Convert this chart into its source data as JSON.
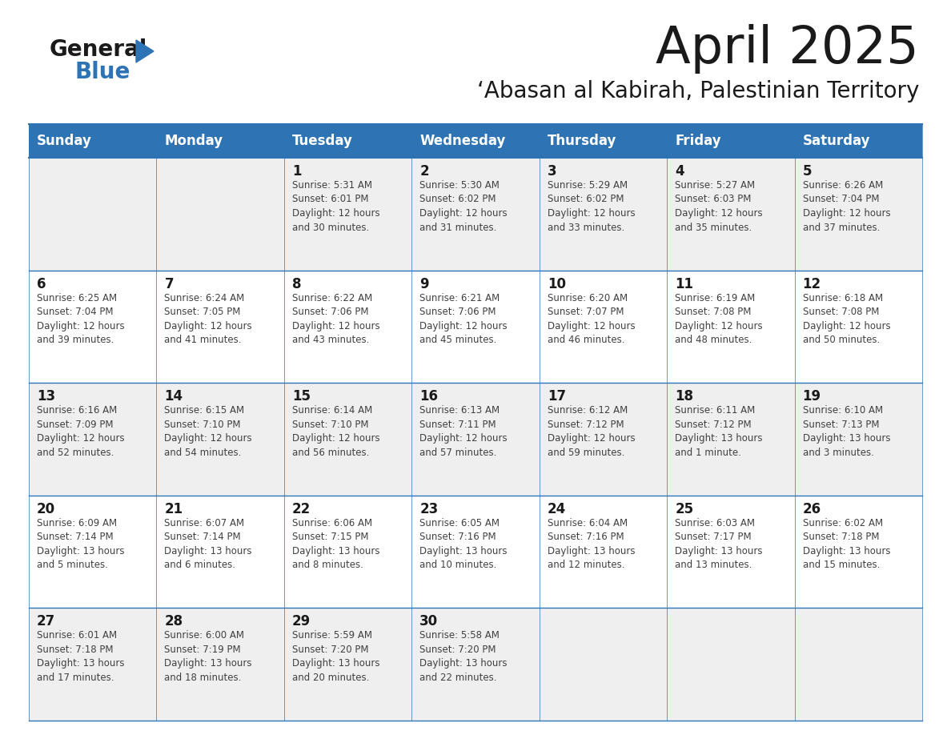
{
  "title": "April 2025",
  "subtitle": "‘Abasan al Kabirah, Palestinian Territory",
  "days_of_week": [
    "Sunday",
    "Monday",
    "Tuesday",
    "Wednesday",
    "Thursday",
    "Friday",
    "Saturday"
  ],
  "header_bg": "#2E74B5",
  "header_text": "#FFFFFF",
  "row_bg_even": "#EFEFEF",
  "row_bg_odd": "#FFFFFF",
  "cell_border": "#2E74B5",
  "title_color": "#1a1a1a",
  "subtitle_color": "#1a1a1a",
  "text_color": "#404040",
  "day_num_color": "#1a1a1a",
  "logo_general_color": "#1a1a1a",
  "logo_blue_color": "#2E74B5",
  "logo_triangle_color": "#2E74B5",
  "calendar": [
    [
      {
        "day": "",
        "info": ""
      },
      {
        "day": "",
        "info": ""
      },
      {
        "day": "1",
        "info": "Sunrise: 5:31 AM\nSunset: 6:01 PM\nDaylight: 12 hours\nand 30 minutes."
      },
      {
        "day": "2",
        "info": "Sunrise: 5:30 AM\nSunset: 6:02 PM\nDaylight: 12 hours\nand 31 minutes."
      },
      {
        "day": "3",
        "info": "Sunrise: 5:29 AM\nSunset: 6:02 PM\nDaylight: 12 hours\nand 33 minutes."
      },
      {
        "day": "4",
        "info": "Sunrise: 5:27 AM\nSunset: 6:03 PM\nDaylight: 12 hours\nand 35 minutes."
      },
      {
        "day": "5",
        "info": "Sunrise: 6:26 AM\nSunset: 7:04 PM\nDaylight: 12 hours\nand 37 minutes."
      }
    ],
    [
      {
        "day": "6",
        "info": "Sunrise: 6:25 AM\nSunset: 7:04 PM\nDaylight: 12 hours\nand 39 minutes."
      },
      {
        "day": "7",
        "info": "Sunrise: 6:24 AM\nSunset: 7:05 PM\nDaylight: 12 hours\nand 41 minutes."
      },
      {
        "day": "8",
        "info": "Sunrise: 6:22 AM\nSunset: 7:06 PM\nDaylight: 12 hours\nand 43 minutes."
      },
      {
        "day": "9",
        "info": "Sunrise: 6:21 AM\nSunset: 7:06 PM\nDaylight: 12 hours\nand 45 minutes."
      },
      {
        "day": "10",
        "info": "Sunrise: 6:20 AM\nSunset: 7:07 PM\nDaylight: 12 hours\nand 46 minutes."
      },
      {
        "day": "11",
        "info": "Sunrise: 6:19 AM\nSunset: 7:08 PM\nDaylight: 12 hours\nand 48 minutes."
      },
      {
        "day": "12",
        "info": "Sunrise: 6:18 AM\nSunset: 7:08 PM\nDaylight: 12 hours\nand 50 minutes."
      }
    ],
    [
      {
        "day": "13",
        "info": "Sunrise: 6:16 AM\nSunset: 7:09 PM\nDaylight: 12 hours\nand 52 minutes."
      },
      {
        "day": "14",
        "info": "Sunrise: 6:15 AM\nSunset: 7:10 PM\nDaylight: 12 hours\nand 54 minutes."
      },
      {
        "day": "15",
        "info": "Sunrise: 6:14 AM\nSunset: 7:10 PM\nDaylight: 12 hours\nand 56 minutes."
      },
      {
        "day": "16",
        "info": "Sunrise: 6:13 AM\nSunset: 7:11 PM\nDaylight: 12 hours\nand 57 minutes."
      },
      {
        "day": "17",
        "info": "Sunrise: 6:12 AM\nSunset: 7:12 PM\nDaylight: 12 hours\nand 59 minutes."
      },
      {
        "day": "18",
        "info": "Sunrise: 6:11 AM\nSunset: 7:12 PM\nDaylight: 13 hours\nand 1 minute."
      },
      {
        "day": "19",
        "info": "Sunrise: 6:10 AM\nSunset: 7:13 PM\nDaylight: 13 hours\nand 3 minutes."
      }
    ],
    [
      {
        "day": "20",
        "info": "Sunrise: 6:09 AM\nSunset: 7:14 PM\nDaylight: 13 hours\nand 5 minutes."
      },
      {
        "day": "21",
        "info": "Sunrise: 6:07 AM\nSunset: 7:14 PM\nDaylight: 13 hours\nand 6 minutes."
      },
      {
        "day": "22",
        "info": "Sunrise: 6:06 AM\nSunset: 7:15 PM\nDaylight: 13 hours\nand 8 minutes."
      },
      {
        "day": "23",
        "info": "Sunrise: 6:05 AM\nSunset: 7:16 PM\nDaylight: 13 hours\nand 10 minutes."
      },
      {
        "day": "24",
        "info": "Sunrise: 6:04 AM\nSunset: 7:16 PM\nDaylight: 13 hours\nand 12 minutes."
      },
      {
        "day": "25",
        "info": "Sunrise: 6:03 AM\nSunset: 7:17 PM\nDaylight: 13 hours\nand 13 minutes."
      },
      {
        "day": "26",
        "info": "Sunrise: 6:02 AM\nSunset: 7:18 PM\nDaylight: 13 hours\nand 15 minutes."
      }
    ],
    [
      {
        "day": "27",
        "info": "Sunrise: 6:01 AM\nSunset: 7:18 PM\nDaylight: 13 hours\nand 17 minutes."
      },
      {
        "day": "28",
        "info": "Sunrise: 6:00 AM\nSunset: 7:19 PM\nDaylight: 13 hours\nand 18 minutes."
      },
      {
        "day": "29",
        "info": "Sunrise: 5:59 AM\nSunset: 7:20 PM\nDaylight: 13 hours\nand 20 minutes."
      },
      {
        "day": "30",
        "info": "Sunrise: 5:58 AM\nSunset: 7:20 PM\nDaylight: 13 hours\nand 22 minutes."
      },
      {
        "day": "",
        "info": ""
      },
      {
        "day": "",
        "info": ""
      },
      {
        "day": "",
        "info": ""
      }
    ]
  ]
}
